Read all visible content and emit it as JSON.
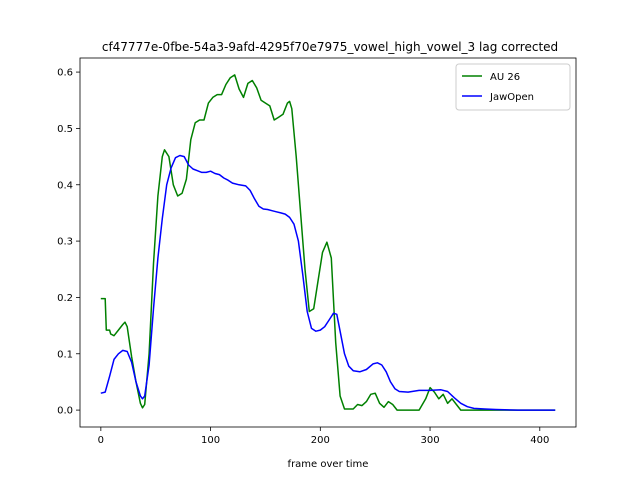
{
  "chart_data": {
    "type": "line",
    "title": "cf47777e-0fbe-54a3-9afd-4295f70e7975_vowel_high_vowel_3  lag corrected",
    "xlabel": "frame over time",
    "ylabel": "",
    "xlim": [
      -19,
      433
    ],
    "ylim": [
      -0.03,
      0.625
    ],
    "xticks": [
      0,
      100,
      200,
      300,
      400
    ],
    "yticks": [
      0.0,
      0.1,
      0.2,
      0.3,
      0.4,
      0.5,
      0.6
    ],
    "xtick_labels": [
      "0",
      "100",
      "200",
      "300",
      "400"
    ],
    "ytick_labels": [
      "0.0",
      "0.1",
      "0.2",
      "0.3",
      "0.4",
      "0.5",
      "0.6"
    ],
    "grid": false,
    "legend_position": "top-right",
    "legend": [
      "AU 26",
      "JawOpen"
    ],
    "series": [
      {
        "name": "AU 26",
        "color": "#008000",
        "points": [
          [
            0,
            0.198
          ],
          [
            4,
            0.198
          ],
          [
            5,
            0.142
          ],
          [
            8,
            0.142
          ],
          [
            9,
            0.135
          ],
          [
            12,
            0.132
          ],
          [
            16,
            0.142
          ],
          [
            20,
            0.152
          ],
          [
            22,
            0.156
          ],
          [
            24,
            0.148
          ],
          [
            28,
            0.095
          ],
          [
            32,
            0.05
          ],
          [
            36,
            0.012
          ],
          [
            38,
            0.004
          ],
          [
            40,
            0.01
          ],
          [
            44,
            0.1
          ],
          [
            48,
            0.26
          ],
          [
            52,
            0.38
          ],
          [
            56,
            0.45
          ],
          [
            58,
            0.462
          ],
          [
            62,
            0.45
          ],
          [
            66,
            0.4
          ],
          [
            70,
            0.38
          ],
          [
            74,
            0.385
          ],
          [
            78,
            0.41
          ],
          [
            82,
            0.48
          ],
          [
            86,
            0.51
          ],
          [
            90,
            0.515
          ],
          [
            94,
            0.515
          ],
          [
            98,
            0.545
          ],
          [
            102,
            0.555
          ],
          [
            106,
            0.56
          ],
          [
            110,
            0.56
          ],
          [
            114,
            0.578
          ],
          [
            118,
            0.59
          ],
          [
            122,
            0.595
          ],
          [
            126,
            0.57
          ],
          [
            130,
            0.555
          ],
          [
            134,
            0.58
          ],
          [
            138,
            0.585
          ],
          [
            142,
            0.572
          ],
          [
            146,
            0.55
          ],
          [
            150,
            0.545
          ],
          [
            154,
            0.54
          ],
          [
            158,
            0.515
          ],
          [
            162,
            0.52
          ],
          [
            166,
            0.525
          ],
          [
            170,
            0.545
          ],
          [
            172,
            0.548
          ],
          [
            174,
            0.535
          ],
          [
            178,
            0.45
          ],
          [
            182,
            0.35
          ],
          [
            186,
            0.25
          ],
          [
            190,
            0.175
          ],
          [
            194,
            0.18
          ],
          [
            198,
            0.23
          ],
          [
            202,
            0.28
          ],
          [
            206,
            0.298
          ],
          [
            210,
            0.27
          ],
          [
            214,
            0.12
          ],
          [
            218,
            0.025
          ],
          [
            222,
            0.002
          ],
          [
            226,
            0.002
          ],
          [
            230,
            0.002
          ],
          [
            234,
            0.01
          ],
          [
            238,
            0.008
          ],
          [
            242,
            0.015
          ],
          [
            246,
            0.028
          ],
          [
            250,
            0.03
          ],
          [
            254,
            0.012
          ],
          [
            258,
            0.005
          ],
          [
            262,
            0.015
          ],
          [
            266,
            0.01
          ],
          [
            270,
            0.0
          ],
          [
            280,
            0.0
          ],
          [
            290,
            0.0
          ],
          [
            296,
            0.02
          ],
          [
            300,
            0.04
          ],
          [
            304,
            0.032
          ],
          [
            308,
            0.02
          ],
          [
            312,
            0.028
          ],
          [
            316,
            0.012
          ],
          [
            320,
            0.02
          ],
          [
            324,
            0.01
          ],
          [
            328,
            0.0
          ],
          [
            340,
            0.0
          ],
          [
            360,
            0.0
          ],
          [
            380,
            0.0
          ],
          [
            400,
            0.0
          ],
          [
            414,
            0.0
          ]
        ]
      },
      {
        "name": "JawOpen",
        "color": "#0000ff",
        "points": [
          [
            0,
            0.03
          ],
          [
            4,
            0.032
          ],
          [
            8,
            0.06
          ],
          [
            12,
            0.09
          ],
          [
            16,
            0.1
          ],
          [
            20,
            0.106
          ],
          [
            24,
            0.104
          ],
          [
            28,
            0.085
          ],
          [
            32,
            0.05
          ],
          [
            36,
            0.025
          ],
          [
            38,
            0.02
          ],
          [
            40,
            0.025
          ],
          [
            44,
            0.08
          ],
          [
            48,
            0.18
          ],
          [
            52,
            0.27
          ],
          [
            56,
            0.34
          ],
          [
            60,
            0.4
          ],
          [
            64,
            0.43
          ],
          [
            68,
            0.448
          ],
          [
            72,
            0.452
          ],
          [
            76,
            0.45
          ],
          [
            80,
            0.435
          ],
          [
            84,
            0.428
          ],
          [
            88,
            0.425
          ],
          [
            92,
            0.422
          ],
          [
            96,
            0.422
          ],
          [
            100,
            0.424
          ],
          [
            104,
            0.42
          ],
          [
            108,
            0.418
          ],
          [
            112,
            0.412
          ],
          [
            116,
            0.408
          ],
          [
            120,
            0.403
          ],
          [
            126,
            0.4
          ],
          [
            132,
            0.398
          ],
          [
            136,
            0.39
          ],
          [
            140,
            0.375
          ],
          [
            144,
            0.362
          ],
          [
            148,
            0.357
          ],
          [
            152,
            0.356
          ],
          [
            156,
            0.354
          ],
          [
            160,
            0.352
          ],
          [
            164,
            0.35
          ],
          [
            168,
            0.348
          ],
          [
            172,
            0.342
          ],
          [
            176,
            0.33
          ],
          [
            180,
            0.3
          ],
          [
            184,
            0.24
          ],
          [
            188,
            0.175
          ],
          [
            192,
            0.145
          ],
          [
            196,
            0.14
          ],
          [
            200,
            0.142
          ],
          [
            204,
            0.148
          ],
          [
            208,
            0.16
          ],
          [
            212,
            0.172
          ],
          [
            215,
            0.17
          ],
          [
            218,
            0.14
          ],
          [
            222,
            0.1
          ],
          [
            226,
            0.078
          ],
          [
            230,
            0.07
          ],
          [
            236,
            0.068
          ],
          [
            242,
            0.072
          ],
          [
            248,
            0.082
          ],
          [
            252,
            0.084
          ],
          [
            256,
            0.08
          ],
          [
            260,
            0.068
          ],
          [
            264,
            0.05
          ],
          [
            268,
            0.038
          ],
          [
            272,
            0.033
          ],
          [
            280,
            0.032
          ],
          [
            290,
            0.035
          ],
          [
            300,
            0.035
          ],
          [
            310,
            0.036
          ],
          [
            316,
            0.033
          ],
          [
            322,
            0.022
          ],
          [
            328,
            0.012
          ],
          [
            334,
            0.006
          ],
          [
            340,
            0.003
          ],
          [
            350,
            0.002
          ],
          [
            360,
            0.001
          ],
          [
            380,
            0.0
          ],
          [
            400,
            0.0
          ],
          [
            414,
            0.0
          ]
        ]
      }
    ]
  }
}
